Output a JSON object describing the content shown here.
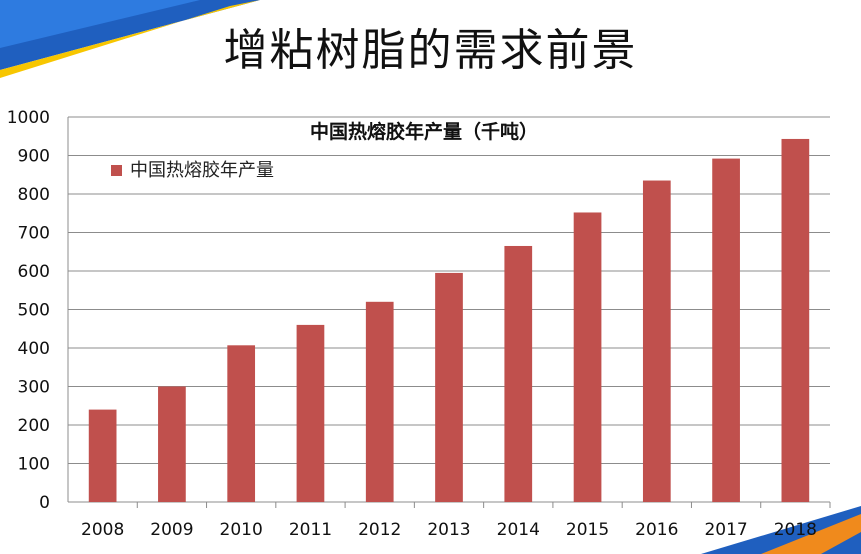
{
  "slide": {
    "title": "增粘树脂的需求前景"
  },
  "colors": {
    "bar": "#C0504D",
    "grid": "#8c8c8c",
    "accent_blue": "#1F5FBF",
    "accent_yellow": "#F7C600",
    "accent_orange": "#F08A1C"
  },
  "chart_data": {
    "type": "bar",
    "title": "中国热熔胶年产量（千吨）",
    "xlabel": "",
    "ylabel": "",
    "categories": [
      "2008",
      "2009",
      "2010",
      "2011",
      "2012",
      "2013",
      "2014",
      "2015",
      "2016",
      "2017",
      "2018"
    ],
    "series": [
      {
        "name": "中国热熔胶年产量",
        "values": [
          240,
          300,
          407,
          460,
          520,
          595,
          665,
          752,
          835,
          892,
          943
        ]
      }
    ],
    "ylim": [
      0,
      1000
    ],
    "yticks": [
      "0",
      "100",
      "200",
      "300",
      "400",
      "500",
      "600",
      "700",
      "800",
      "900",
      "1000"
    ],
    "grid": true,
    "legend": "top-left"
  }
}
